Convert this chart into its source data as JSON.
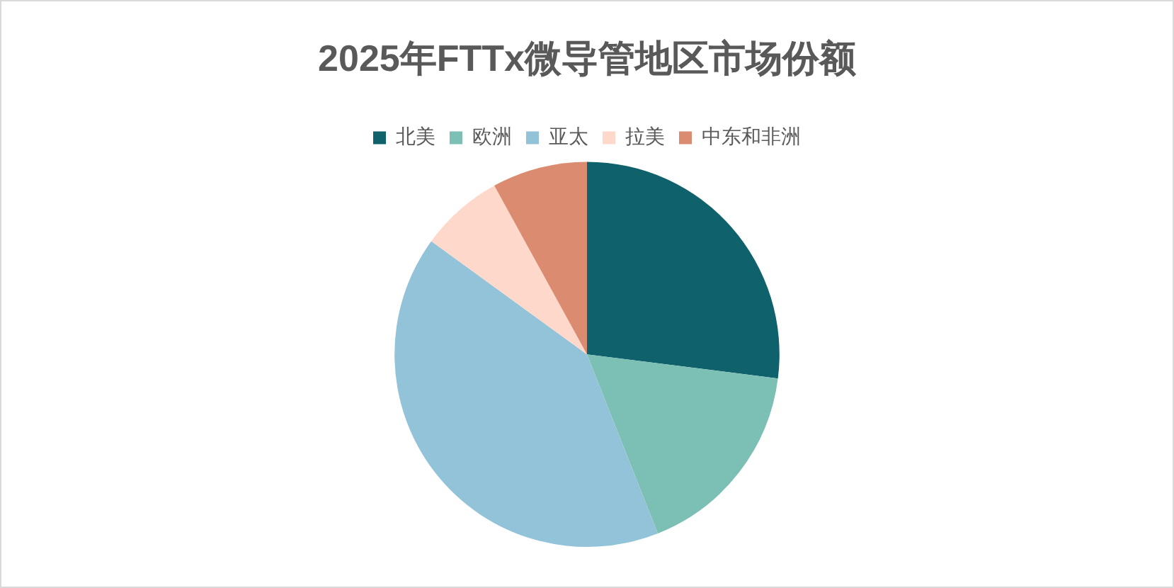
{
  "chart_data": {
    "type": "pie",
    "title": "2025年FTTx微导管地区市场份额",
    "categories": [
      "北美",
      "欧洲",
      "亚太",
      "拉美",
      "中东和非洲"
    ],
    "values": [
      27,
      17,
      41,
      7,
      8
    ],
    "colors": [
      "#0f616b",
      "#7cbfb5",
      "#92c3d8",
      "#fed8cb",
      "#db8b70"
    ],
    "legend": "top"
  }
}
